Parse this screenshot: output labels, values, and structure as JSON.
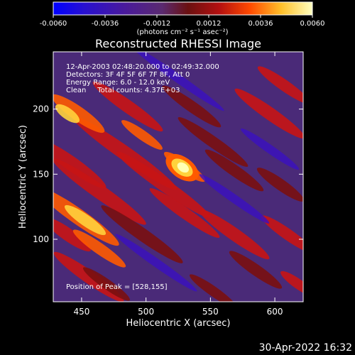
{
  "chart_data": {
    "type": "heatmap",
    "title": "Reconstructed RHESSI Image",
    "xlabel": "Heliocentric X (arcsec)",
    "ylabel": "Heliocentric Y (arcsec)",
    "xlim": [
      428,
      622
    ],
    "ylim": [
      52,
      244
    ],
    "x_ticks": [
      450,
      500,
      550,
      600
    ],
    "y_ticks": [
      100,
      150,
      200
    ],
    "peak": [
      528,
      155
    ],
    "colorbar": {
      "range": [
        -0.006,
        0.006
      ],
      "tick_values": [
        -0.006,
        -0.0036,
        -0.0012,
        0.0012,
        0.0036,
        0.006
      ],
      "tick_labels": [
        "-0.0060",
        "-0.0036",
        "-0.0012",
        "0.0012",
        "0.0036",
        "0.0060"
      ],
      "label": "(photons cm⁻² s⁻¹ asec⁻²)",
      "colors": [
        "#0000ff",
        "#3a10c0",
        "#5a1a90",
        "#5a2a70",
        "#7a1010",
        "#c81414",
        "#ff5a00",
        "#ffd23c",
        "#ffffb4"
      ]
    },
    "annotations": [
      "12-Apr-2003 02:48:20.000 to 02:49:32.000",
      "Detectors: 3F 4F 5F 6F 7F 8F, Att 0",
      "Energy Range: 6.0 - 12.0 keV",
      "Clean     Total counts: 4.37E+03",
      "Position of Peak = [528,155]"
    ]
  },
  "footer": {
    "date": "30-Apr-2022 16:32"
  }
}
